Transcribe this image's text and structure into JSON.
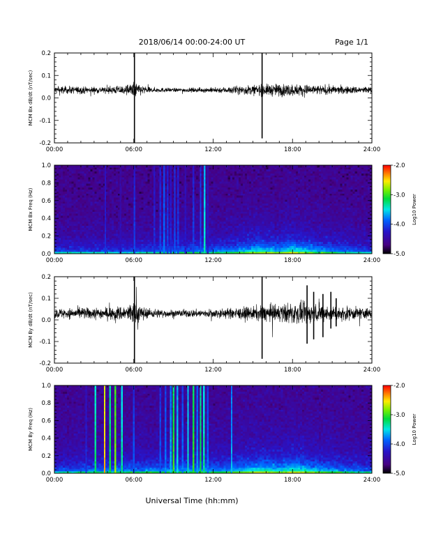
{
  "header": {
    "title": "2018/06/14  00:00-24:00 UT",
    "page": "Page 1/1"
  },
  "x_axis_label": "Universal Time (hh:mm)",
  "chart_data": [
    {
      "type": "line",
      "id": "panel1",
      "ylabel": "MCM Bx dB/dt (nT/sec)",
      "xlim": [
        0,
        24
      ],
      "ylim": [
        -0.2,
        0.2
      ],
      "x_ticks": [
        "00:00",
        "06:00",
        "12:00",
        "18:00",
        "24:00"
      ],
      "y_ticks": [
        -0.2,
        -0.1,
        0.0,
        0.1,
        0.2
      ],
      "y_tick_labels": [
        "-0.2",
        "-0.1",
        "0.0",
        "0.1",
        "0.2"
      ],
      "baseline": 0.035,
      "noise_envelope": [
        {
          "hour": 0,
          "amp": 0.012
        },
        {
          "hour": 2,
          "amp": 0.011
        },
        {
          "hour": 4,
          "amp": 0.01
        },
        {
          "hour": 5.6,
          "amp": 0.016
        },
        {
          "hour": 6.0,
          "amp": 0.026
        },
        {
          "hour": 7,
          "amp": 0.009
        },
        {
          "hour": 9,
          "amp": 0.006
        },
        {
          "hour": 11,
          "amp": 0.007
        },
        {
          "hour": 13,
          "amp": 0.01
        },
        {
          "hour": 15,
          "amp": 0.016
        },
        {
          "hour": 17,
          "amp": 0.02
        },
        {
          "hour": 18.5,
          "amp": 0.018
        },
        {
          "hour": 20,
          "amp": 0.015
        },
        {
          "hour": 22,
          "amp": 0.012
        },
        {
          "hour": 24,
          "amp": 0.011
        }
      ],
      "spikes": [
        {
          "hour": 6.05,
          "min": -0.2,
          "max": 0.2
        },
        {
          "hour": 15.7,
          "min": -0.18,
          "max": 0.2
        }
      ],
      "color": "#000000"
    },
    {
      "type": "heatmap",
      "id": "panel2",
      "ylabel": "MCM Bx Freq (Hz)",
      "xlim": [
        0,
        24
      ],
      "ylim": [
        0.0,
        1.0
      ],
      "x_ticks": [
        "00:00",
        "06:00",
        "12:00",
        "18:00",
        "24:00"
      ],
      "y_ticks": [
        0.0,
        0.2,
        0.4,
        0.6,
        0.8,
        1.0
      ],
      "y_tick_labels": [
        "0.0",
        "0.2",
        "0.4",
        "0.6",
        "0.8",
        "1.0"
      ],
      "colorbar": {
        "label": "Log10 Power",
        "range": [
          -5.0,
          -2.0
        ],
        "tick_labels": [
          "-5.0",
          "-4.0",
          "-3.0",
          "-2.0"
        ],
        "tick_values": [
          -5.0,
          -4.0,
          -3.0,
          -2.0
        ]
      },
      "background_level": -4.65,
      "low_freq_activity": [
        {
          "hour": 0,
          "level": -3.9
        },
        {
          "hour": 5,
          "level": -3.9
        },
        {
          "hour": 9,
          "level": -3.7
        },
        {
          "hour": 13,
          "level": -3.6
        },
        {
          "hour": 15.5,
          "level": -3.1
        },
        {
          "hour": 17,
          "level": -3.3
        },
        {
          "hour": 18,
          "level": -3.0
        },
        {
          "hour": 20,
          "level": -3.4
        },
        {
          "hour": 22,
          "level": -3.7
        },
        {
          "hour": 24,
          "level": -3.9
        }
      ],
      "vertical_bursts": [
        {
          "hour": 3.85,
          "level": -4.1
        },
        {
          "hour": 5.0,
          "level": -4.3
        },
        {
          "hour": 6.05,
          "level": -4.0
        },
        {
          "hour": 7.55,
          "level": -4.1
        },
        {
          "hour": 8.0,
          "level": -4.0
        },
        {
          "hour": 8.3,
          "level": -3.8
        },
        {
          "hour": 8.55,
          "level": -4.0
        },
        {
          "hour": 8.8,
          "level": -4.1
        },
        {
          "hour": 9.1,
          "level": -3.9
        },
        {
          "hour": 9.35,
          "level": -4.0
        },
        {
          "hour": 9.9,
          "level": -4.2
        },
        {
          "hour": 10.5,
          "level": -4.0
        },
        {
          "hour": 11.05,
          "level": -3.9
        },
        {
          "hour": 11.35,
          "level": -3.4
        },
        {
          "hour": 11.6,
          "level": -4.2
        }
      ]
    },
    {
      "type": "line",
      "id": "panel3",
      "ylabel": "MCM By dB/dt (nT/sec)",
      "xlim": [
        0,
        24
      ],
      "ylim": [
        -0.2,
        0.2
      ],
      "x_ticks": [
        "00:00",
        "06:00",
        "12:00",
        "18:00",
        "24:00"
      ],
      "y_ticks": [
        -0.2,
        -0.1,
        0.0,
        0.1,
        0.2
      ],
      "y_tick_labels": [
        "-0.2",
        "-0.1",
        "0.0",
        "0.1",
        "0.2"
      ],
      "baseline": 0.03,
      "noise_envelope": [
        {
          "hour": 0,
          "amp": 0.016
        },
        {
          "hour": 2,
          "amp": 0.018
        },
        {
          "hour": 4,
          "amp": 0.02
        },
        {
          "hour": 5.6,
          "amp": 0.028
        },
        {
          "hour": 6.0,
          "amp": 0.04
        },
        {
          "hour": 7,
          "amp": 0.016
        },
        {
          "hour": 9,
          "amp": 0.012
        },
        {
          "hour": 11,
          "amp": 0.013
        },
        {
          "hour": 13,
          "amp": 0.016
        },
        {
          "hour": 15,
          "amp": 0.022
        },
        {
          "hour": 17,
          "amp": 0.03
        },
        {
          "hour": 18.5,
          "amp": 0.034
        },
        {
          "hour": 20,
          "amp": 0.028
        },
        {
          "hour": 22,
          "amp": 0.022
        },
        {
          "hour": 24,
          "amp": 0.018
        }
      ],
      "spikes": [
        {
          "hour": 6.05,
          "min": -0.2,
          "max": 0.2
        },
        {
          "hour": 15.7,
          "min": -0.18,
          "max": 0.2
        },
        {
          "hour": 19.1,
          "min": -0.11,
          "max": 0.16
        },
        {
          "hour": 19.6,
          "min": -0.09,
          "max": 0.13
        },
        {
          "hour": 20.3,
          "min": -0.08,
          "max": 0.12
        },
        {
          "hour": 20.9,
          "min": -0.04,
          "max": 0.13
        },
        {
          "hour": 21.3,
          "min": -0.03,
          "max": 0.1
        }
      ],
      "color": "#000000"
    },
    {
      "type": "heatmap",
      "id": "panel4",
      "ylabel": "MCM By Freq (Hz)",
      "xlim": [
        0,
        24
      ],
      "ylim": [
        0.0,
        1.0
      ],
      "x_ticks": [
        "00:00",
        "06:00",
        "12:00",
        "18:00",
        "24:00"
      ],
      "y_ticks": [
        0.0,
        0.2,
        0.4,
        0.6,
        0.8,
        1.0
      ],
      "y_tick_labels": [
        "0.0",
        "0.2",
        "0.4",
        "0.6",
        "0.8",
        "1.0"
      ],
      "colorbar": {
        "label": "Log10 Power",
        "range": [
          -5.0,
          -2.0
        ],
        "tick_labels": [
          "-5.0",
          "-4.0",
          "-3.0",
          "-2.0"
        ],
        "tick_values": [
          -5.0,
          -4.0,
          -3.0,
          -2.0
        ]
      },
      "background_level": -4.6,
      "low_freq_activity": [
        {
          "hour": 0,
          "level": -3.8
        },
        {
          "hour": 5,
          "level": -3.6
        },
        {
          "hour": 9,
          "level": -3.5
        },
        {
          "hour": 13,
          "level": -3.5
        },
        {
          "hour": 15.5,
          "level": -3.0
        },
        {
          "hour": 17,
          "level": -3.2
        },
        {
          "hour": 18,
          "level": -2.9
        },
        {
          "hour": 20,
          "level": -3.3
        },
        {
          "hour": 22,
          "level": -3.6
        },
        {
          "hour": 24,
          "level": -3.8
        }
      ],
      "vertical_bursts": [
        {
          "hour": 2.4,
          "level": -4.1
        },
        {
          "hour": 3.1,
          "level": -3.2
        },
        {
          "hour": 3.8,
          "level": -2.4
        },
        {
          "hour": 4.2,
          "level": -3.1
        },
        {
          "hour": 4.6,
          "level": -2.8
        },
        {
          "hour": 5.1,
          "level": -3.3
        },
        {
          "hour": 6.0,
          "level": -3.9
        },
        {
          "hour": 8.0,
          "level": -3.9
        },
        {
          "hour": 8.4,
          "level": -3.8
        },
        {
          "hour": 8.8,
          "level": -3.6
        },
        {
          "hour": 9.0,
          "level": -3.0
        },
        {
          "hour": 9.3,
          "level": -3.5
        },
        {
          "hour": 9.7,
          "level": -3.8
        },
        {
          "hour": 10.1,
          "level": -3.4
        },
        {
          "hour": 10.5,
          "level": -3.0
        },
        {
          "hour": 10.8,
          "level": -3.7
        },
        {
          "hour": 11.05,
          "level": -3.1
        },
        {
          "hour": 11.3,
          "level": -3.3
        },
        {
          "hour": 11.6,
          "level": -3.8
        },
        {
          "hour": 13.4,
          "level": -3.6
        }
      ]
    }
  ]
}
